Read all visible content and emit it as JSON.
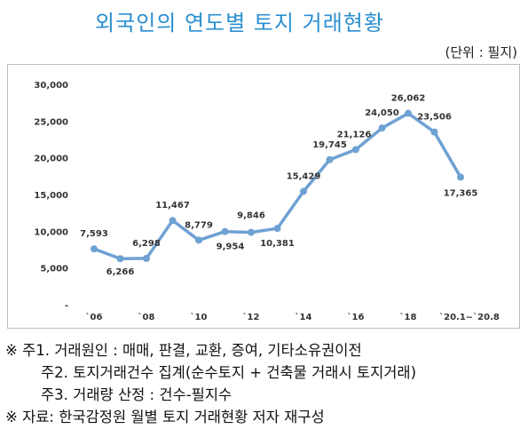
{
  "title": "외국인의 연도별 토지 거래현황",
  "unit": "(단위 : 필지)",
  "colors": {
    "title": "#2b8fd0",
    "line": "#6fa1d3",
    "axis_text": "#333333"
  },
  "chart_data": {
    "type": "line",
    "x": [
      "2006",
      "2007",
      "2008",
      "2009",
      "2010",
      "2011",
      "2012",
      "2013",
      "2014",
      "2015",
      "2016",
      "2017",
      "2018",
      "2019",
      "2020.1~2020.8"
    ],
    "values": [
      7593,
      6266,
      6298,
      11467,
      8779,
      9954,
      9846,
      10381,
      15429,
      19745,
      21126,
      24050,
      26062,
      23506,
      17365
    ],
    "data_labels": [
      "7,593",
      "6,266",
      "6,298",
      "11,467",
      "8,779",
      "9,954",
      "9,846",
      "10,381",
      "15,429",
      "19,745",
      "21,126",
      "24,050",
      "26,062",
      "23,506",
      "17,365"
    ],
    "x_tick_labels": [
      "`06",
      "`08",
      "`10",
      "`12",
      "`14",
      "`16",
      "`18",
      "`20.1~`20.8"
    ],
    "y_tick_labels": [
      "-",
      "5,000",
      "10,000",
      "15,000",
      "20,000",
      "25,000",
      "30,000"
    ],
    "ylim": [
      0,
      30000
    ],
    "grid": false,
    "legend": "none",
    "title": "",
    "xlabel": "",
    "ylabel": ""
  },
  "notes": [
    "※ 주1. 거래원인 : 매매, 판결, 교환, 증여, 기타소유권이전",
    "주2. 토지거래건수 집계(순수토지 + 건축물 거래시 토지거래)",
    "주3. 거래량 산정 : 건수-필지수",
    "※ 자료: 한국감정원 월별 토지 거래현황 저자 재구성"
  ]
}
